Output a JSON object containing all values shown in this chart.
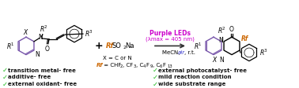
{
  "bg_color": "#ffffff",
  "left_bullet_items": [
    "transition metal- free",
    "additive- free",
    "external oxidant- free"
  ],
  "right_bullet_items": [
    "external photocatalyst- free",
    "mild reaction condition",
    "wide substrate range"
  ],
  "bullet_color": "#22bb22",
  "bullet_text_color": "#111111",
  "purple_color": "#cc00cc",
  "rf_color": "#cc6600",
  "blue_color": "#3333cc",
  "ring_purple": "#7755aa",
  "arrow_color": "#333333",
  "checkmark": "✓"
}
